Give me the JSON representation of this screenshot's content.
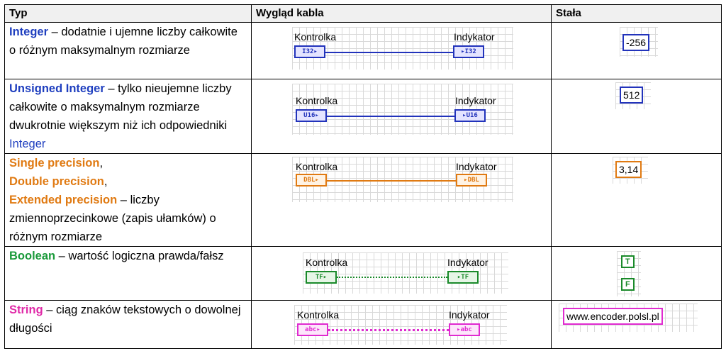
{
  "headers": {
    "type": "Typ",
    "wire": "Wygląd kabla",
    "const": "Stała"
  },
  "rows": [
    {
      "t1": "Integer",
      "d1": " – dodatnie i ujemne liczby całkowite o różnym maksymalnym rozmiarze",
      "ctrl": "Kontrolka",
      "ind": "Indykator",
      "tag": "I32",
      "const": "-256",
      "color": "#2233bb"
    },
    {
      "t1": "Unsigned Integer",
      "d1": " – tylko nieujemne liczby całkowite o maksymalnym rozmiarze dwukrotnie większym niż ich odpowiedniki ",
      "t2": "Integer",
      "ctrl": "Kontrolka",
      "ind": "Indykator",
      "tag": "U16",
      "const": "512",
      "color": "#2233bb"
    },
    {
      "t1": "Single precision",
      "s1": ",",
      "t2": "Double precision",
      "s2": ",",
      "t3": "Extended precision",
      "d1": " – liczby zmiennoprzecinkowe (zapis ułamków) o różnym rozmiarze",
      "ctrl": "Kontrolka",
      "ind": "Indykator",
      "tag": "DBL",
      "const": "3,14",
      "color": "#e07a12"
    },
    {
      "t1": "Boolean",
      "d1": " – wartość logiczna prawda/fałsz",
      "ctrl": "Kontrolka",
      "ind": "Indykator",
      "tag": "TF",
      "const_t": "T",
      "const_f": "F",
      "color": "#1a8a2a"
    },
    {
      "t1": "String",
      "d1": " – ciąg znaków tekstowych o dowolnej długości",
      "ctrl": "Kontrolka",
      "ind": "Indykator",
      "tag": "abc",
      "const": "www.encoder.polsl.pl",
      "color": "#e02ad0"
    }
  ]
}
